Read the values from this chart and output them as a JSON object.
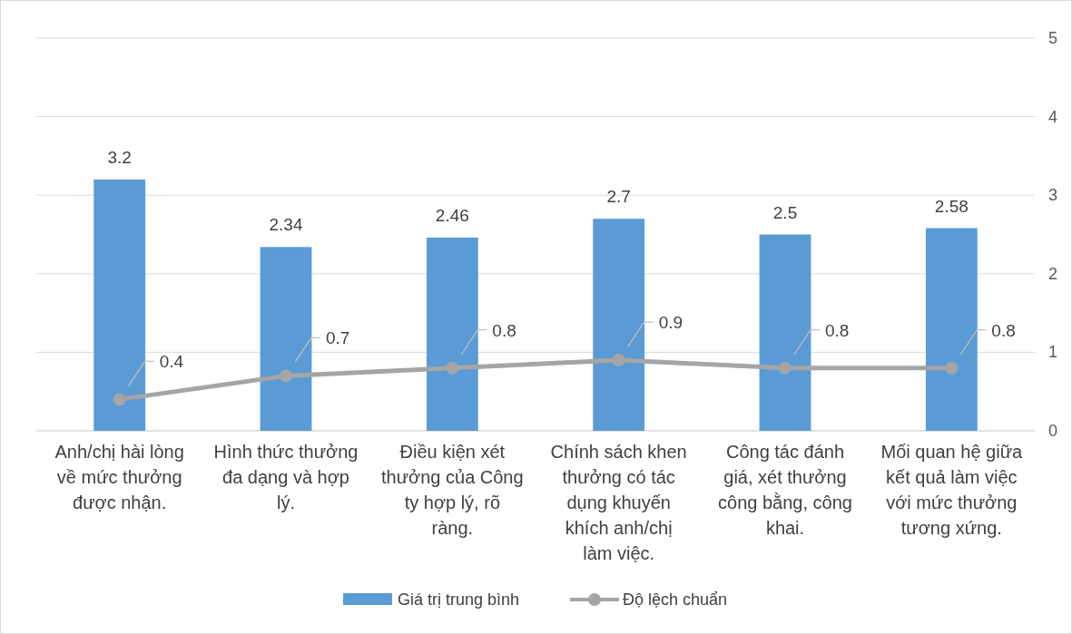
{
  "chart_data": {
    "type": "bar",
    "categories": [
      "Anh/chị hài lòng về mức thưởng được nhận.",
      "Hình thức thưởng đa dạng và hợp lý.",
      "Điều kiện xét thưởng của Công ty hợp lý, rõ ràng.",
      "Chính sách khen thưởng có tác dụng khuyến khích anh/chị làm việc.",
      "Công tác đánh giá, xét thưởng công bằng, công khai.",
      "Mối quan hệ giữa kết quả làm việc với mức thưởng tương xứng."
    ],
    "series": [
      {
        "name": "Giá trị trung bình",
        "type": "bar",
        "color": "#5b9bd5",
        "values": [
          3.2,
          2.34,
          2.46,
          2.7,
          2.5,
          2.58
        ]
      },
      {
        "name": "Độ lệch chuẩn",
        "type": "line",
        "color": "#a5a5a5",
        "values": [
          0.4,
          0.7,
          0.8,
          0.9,
          0.8,
          0.8
        ],
        "marker": "circle",
        "line_style": "solid"
      }
    ],
    "ylim": [
      0,
      5
    ],
    "yticks": [
      0,
      1,
      2,
      3,
      4,
      5
    ],
    "grid": "y",
    "legend": "bottom",
    "data_labels": true
  }
}
